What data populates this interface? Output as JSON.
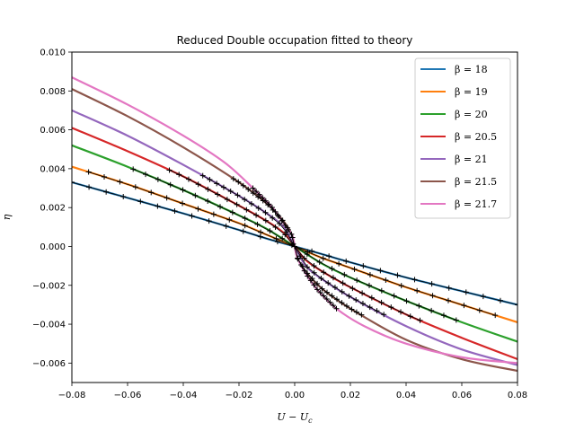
{
  "chart_data": {
    "type": "line",
    "title": "Reduced Double occupation fitted to theory",
    "xlabel": "U − U",
    "xlabel_sub": "c",
    "ylabel": "η",
    "xlim": [
      -0.08,
      0.08
    ],
    "ylim": [
      -0.007,
      0.01
    ],
    "xticks": [
      "−0.08",
      "−0.06",
      "−0.04",
      "−0.02",
      "0.00",
      "0.02",
      "0.04",
      "0.06",
      "0.08"
    ],
    "xtick_values": [
      -0.08,
      -0.06,
      -0.04,
      -0.02,
      0.0,
      0.02,
      0.04,
      0.06,
      0.08
    ],
    "yticks": [
      "−0.006",
      "−0.004",
      "−0.002",
      "0.000",
      "0.002",
      "0.004",
      "0.006",
      "0.008",
      "0.010"
    ],
    "ytick_values": [
      -0.006,
      -0.004,
      -0.002,
      0.0,
      0.002,
      0.004,
      0.006,
      0.008,
      0.01
    ],
    "legend_position": "top-right",
    "marker": "+",
    "series": [
      {
        "name": "β = 18",
        "color": "#1f77b4",
        "fit_x": [
          -0.08,
          -0.06,
          -0.04,
          -0.02,
          -0.01,
          0.0,
          0.01,
          0.02,
          0.04,
          0.06,
          0.08
        ],
        "fit_y": [
          0.0033,
          0.0025,
          0.0017,
          0.00085,
          0.0004,
          0.0,
          -0.0004,
          -0.00082,
          -0.0016,
          -0.0023,
          -0.003
        ],
        "data_x": [
          -0.08,
          0.08
        ],
        "data_y": [
          0.0033,
          -0.003
        ]
      },
      {
        "name": "β = 19",
        "color": "#ff7f0e",
        "fit_x": [
          -0.08,
          -0.06,
          -0.04,
          -0.02,
          -0.01,
          0.0,
          0.01,
          0.02,
          0.04,
          0.06,
          0.08
        ],
        "fit_y": [
          0.0041,
          0.0032,
          0.0022,
          0.0012,
          0.0006,
          0.0,
          -0.0006,
          -0.0011,
          -0.0021,
          -0.003,
          -0.0039
        ],
        "data_x": [
          -0.074,
          0.072
        ],
        "data_y": [
          0.0039,
          -0.0036
        ]
      },
      {
        "name": "β = 20",
        "color": "#2ca02c",
        "fit_x": [
          -0.08,
          -0.06,
          -0.04,
          -0.02,
          -0.01,
          0.0,
          0.01,
          0.02,
          0.04,
          0.06,
          0.08
        ],
        "fit_y": [
          0.0052,
          0.0041,
          0.0029,
          0.0016,
          0.0009,
          0.0,
          -0.0009,
          -0.0016,
          -0.0028,
          -0.0039,
          -0.0049
        ],
        "data_x": [
          -0.058,
          0.058
        ],
        "data_y": [
          0.004,
          -0.0039
        ]
      },
      {
        "name": "β = 20.5",
        "color": "#d62728",
        "fit_x": [
          -0.08,
          -0.06,
          -0.04,
          -0.02,
          -0.01,
          -0.004,
          0.0,
          0.004,
          0.01,
          0.02,
          0.04,
          0.06,
          0.08
        ],
        "fit_y": [
          0.0061,
          0.0049,
          0.0036,
          0.0021,
          0.0013,
          0.0007,
          0.0,
          -0.0007,
          -0.0013,
          -0.0021,
          -0.0035,
          -0.0047,
          -0.0058
        ],
        "data_x": [
          -0.045,
          0.045
        ],
        "data_y": [
          0.0039,
          -0.0038
        ]
      },
      {
        "name": "β = 21",
        "color": "#9467bd",
        "fit_x": [
          -0.08,
          -0.06,
          -0.04,
          -0.02,
          -0.01,
          -0.004,
          0.0,
          0.004,
          0.01,
          0.02,
          0.04,
          0.06,
          0.08
        ],
        "fit_y": [
          0.007,
          0.0057,
          0.0042,
          0.0026,
          0.0017,
          0.001,
          0.0,
          -0.001,
          -0.0017,
          -0.0026,
          -0.0041,
          -0.0053,
          -0.0061
        ],
        "data_x": [
          -0.033,
          0.032
        ],
        "data_y": [
          0.0037,
          -0.0036
        ]
      },
      {
        "name": "β = 21.5",
        "color": "#8c564b",
        "fit_x": [
          -0.08,
          -0.06,
          -0.04,
          -0.02,
          -0.01,
          -0.004,
          -0.001,
          0.0,
          0.001,
          0.004,
          0.01,
          0.02,
          0.04,
          0.06,
          0.08
        ],
        "fit_y": [
          0.0081,
          0.0067,
          0.0051,
          0.0033,
          0.0022,
          0.0013,
          0.0006,
          0.0,
          -0.0006,
          -0.0013,
          -0.0022,
          -0.0032,
          -0.0048,
          -0.0058,
          -0.0064
        ],
        "data_x": [
          -0.022,
          0.024
        ],
        "data_y": [
          0.0041,
          -0.0039
        ]
      },
      {
        "name": "β = 21.7",
        "color": "#e377c2",
        "fit_x": [
          -0.08,
          -0.06,
          -0.04,
          -0.025,
          -0.015,
          -0.008,
          -0.004,
          -0.001,
          0.0,
          0.001,
          0.004,
          0.008,
          0.015,
          0.025,
          0.04,
          0.06,
          0.08
        ],
        "fit_y": [
          0.0087,
          0.0073,
          0.0057,
          0.0043,
          0.003,
          0.002,
          0.0012,
          0.0006,
          0.0,
          -0.0006,
          -0.0014,
          -0.0022,
          -0.0032,
          -0.0041,
          -0.005,
          -0.0057,
          -0.006
        ],
        "data_x": [
          -0.015,
          0.015
        ],
        "data_y": [
          0.0033,
          -0.0032
        ]
      }
    ]
  }
}
